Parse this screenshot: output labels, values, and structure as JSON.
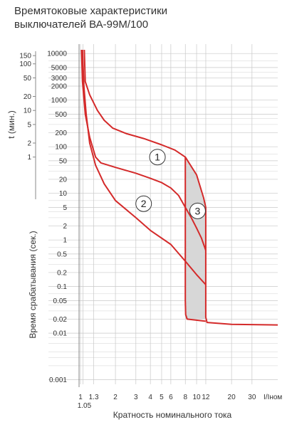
{
  "title": {
    "line1": "Времятоковые характеристики",
    "line2": "выключателей ВА-99М/100"
  },
  "colors": {
    "curve": "#d42a2a",
    "grid": "#c8c8c8",
    "shade": "#d7d7d7",
    "axis": "#888888"
  },
  "chart_data": {
    "type": "line",
    "xlabel": "Кратность номинального тока",
    "xunit": "I/Iном",
    "ylabel_seconds": "Время срабатывания (сек.)",
    "ylabel_minutes": "t (мин.)",
    "x_scale": "log",
    "y_scale": "log",
    "xlim": [
      1,
      50
    ],
    "ylim": [
      0.0008,
      12000
    ],
    "x_ticks": [
      {
        "value": 1,
        "label": "1"
      },
      {
        "value": 1.05,
        "label": "1.05"
      },
      {
        "value": 1.3,
        "label": "1.3"
      },
      {
        "value": 2,
        "label": "2"
      },
      {
        "value": 3,
        "label": "3"
      },
      {
        "value": 4,
        "label": "4"
      },
      {
        "value": 5,
        "label": "5"
      },
      {
        "value": 6,
        "label": "6"
      },
      {
        "value": 8,
        "label": "8"
      },
      {
        "value": 10,
        "label": "10"
      },
      {
        "value": 12,
        "label": "12"
      },
      {
        "value": 20,
        "label": "20"
      },
      {
        "value": 30,
        "label": "30"
      }
    ],
    "y_ticks_seconds": [
      {
        "value": 10000,
        "label": "10000"
      },
      {
        "value": 5000,
        "label": "5000"
      },
      {
        "value": 3000,
        "label": "3000"
      },
      {
        "value": 2000,
        "label": "2000"
      },
      {
        "value": 1000,
        "label": "1000"
      },
      {
        "value": 500,
        "label": "500"
      },
      {
        "value": 200,
        "label": "200"
      },
      {
        "value": 100,
        "label": "100"
      },
      {
        "value": 50,
        "label": "50"
      },
      {
        "value": 20,
        "label": "20"
      },
      {
        "value": 10,
        "label": "10"
      },
      {
        "value": 5,
        "label": "5"
      },
      {
        "value": 2,
        "label": "2"
      },
      {
        "value": 1,
        "label": "1"
      },
      {
        "value": 0.5,
        "label": "0.5"
      },
      {
        "value": 0.2,
        "label": "0.2"
      },
      {
        "value": 0.1,
        "label": "0.1"
      },
      {
        "value": 0.05,
        "label": "0.05"
      },
      {
        "value": 0.02,
        "label": "0.02"
      },
      {
        "value": 0.01,
        "label": "0.01"
      },
      {
        "value": 0.001,
        "label": "0.001"
      }
    ],
    "y_ticks_minutes": [
      {
        "value": 150,
        "label": "150"
      },
      {
        "value": 100,
        "label": "100"
      },
      {
        "value": 50,
        "label": "50"
      },
      {
        "value": 20,
        "label": "20"
      },
      {
        "value": 10,
        "label": "10"
      },
      {
        "value": 5,
        "label": "5"
      },
      {
        "value": 2,
        "label": "2"
      },
      {
        "value": 1,
        "label": "1"
      }
    ],
    "series": [
      {
        "points": [
          [
            1.08,
            12000
          ],
          [
            1.1,
            2500
          ],
          [
            1.2,
            1300
          ],
          [
            1.4,
            600
          ],
          [
            1.6,
            370
          ],
          [
            1.9,
            250
          ],
          [
            2.5,
            190
          ],
          [
            3.5,
            150
          ],
          [
            5,
            110
          ],
          [
            6.5,
            85
          ],
          [
            8,
            60
          ],
          [
            10,
            25
          ],
          [
            11.5,
            8
          ],
          [
            12,
            5
          ],
          [
            12,
            0.08
          ]
        ]
      },
      {
        "points": [
          [
            1.02,
            12000
          ],
          [
            1.04,
            2500
          ],
          [
            1.1,
            500
          ],
          [
            1.2,
            160
          ],
          [
            1.35,
            60
          ],
          [
            1.5,
            45
          ],
          [
            2,
            36
          ],
          [
            3,
            27
          ],
          [
            4,
            21
          ],
          [
            5,
            17
          ],
          [
            6,
            13
          ],
          [
            7,
            9
          ],
          [
            8,
            5
          ],
          [
            9,
            3
          ],
          [
            10,
            1.8
          ],
          [
            11,
            1.1
          ],
          [
            12,
            0.6
          ]
        ]
      },
      {
        "points": [
          [
            1.04,
            12000
          ],
          [
            1.07,
            2000
          ],
          [
            1.12,
            500
          ],
          [
            1.2,
            120
          ],
          [
            1.35,
            40
          ],
          [
            1.6,
            16
          ],
          [
            2,
            7
          ],
          [
            3,
            3
          ],
          [
            4,
            1.6
          ],
          [
            6,
            0.8
          ],
          [
            8,
            0.35
          ],
          [
            10,
            0.18
          ],
          [
            12,
            0.11
          ]
        ]
      },
      {
        "points": [
          [
            8,
            60
          ],
          [
            8,
            0.05
          ],
          [
            8.05,
            0.025
          ],
          [
            8.3,
            0.02
          ],
          [
            12,
            0.018
          ]
        ]
      },
      {
        "points": [
          [
            12,
            0.08
          ],
          [
            12,
            0.022
          ],
          [
            12.3,
            0.017
          ],
          [
            20,
            0.0155
          ],
          [
            50,
            0.015
          ]
        ]
      }
    ],
    "markers": [
      {
        "label": "1",
        "x": 4.6,
        "y": 60
      },
      {
        "label": "2",
        "x": 3.5,
        "y": 6
      },
      {
        "label": "3",
        "x": 10.2,
        "y": 4.2
      }
    ],
    "shaded_band": {
      "x": [
        8,
        12
      ]
    }
  }
}
